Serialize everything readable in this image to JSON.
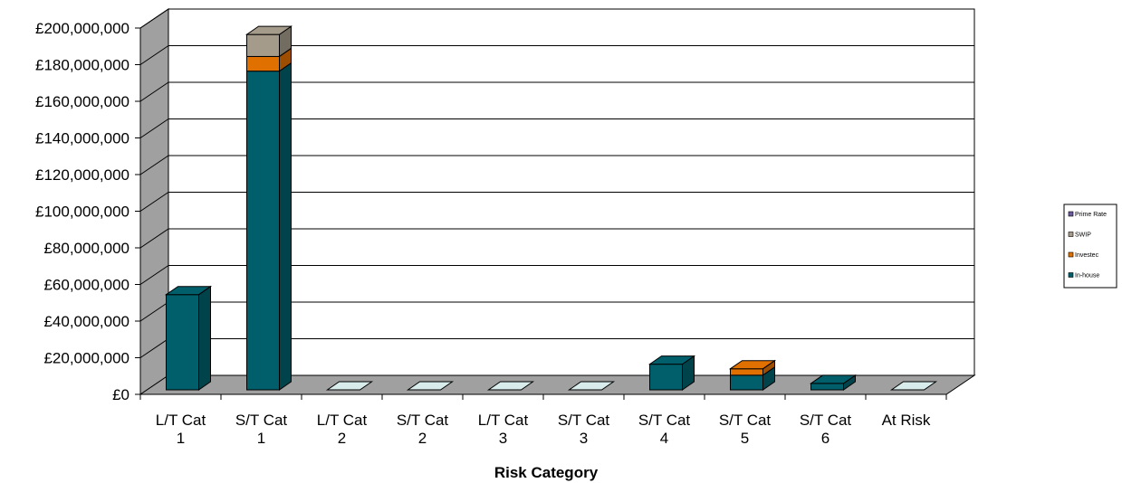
{
  "chart_data": {
    "type": "bar",
    "stacked": true,
    "three_d": true,
    "title": "",
    "xlabel": "Risk Category",
    "ylabel": "",
    "ylim": [
      0,
      200000000
    ],
    "ytick_step": 20000000,
    "ytick_labels": [
      "£0",
      "£20,000,000",
      "£40,000,000",
      "£60,000,000",
      "£80,000,000",
      "£100,000,000",
      "£120,000,000",
      "£140,000,000",
      "£160,000,000",
      "£180,000,000",
      "£200,000,000"
    ],
    "grid": true,
    "legend_position": "right",
    "categories": [
      [
        "L/T Cat",
        "1"
      ],
      [
        "S/T Cat",
        "1"
      ],
      [
        "L/T Cat",
        "2"
      ],
      [
        "S/T Cat",
        "2"
      ],
      [
        "L/T Cat",
        "3"
      ],
      [
        "S/T Cat",
        "3"
      ],
      [
        "S/T Cat",
        "4"
      ],
      [
        "S/T Cat",
        "5"
      ],
      [
        "S/T Cat",
        "6"
      ],
      [
        "At Risk"
      ]
    ],
    "series": [
      {
        "name": "In-house",
        "color": "#005F6B",
        "values": [
          52000000,
          174000000,
          0,
          0,
          0,
          0,
          14000000,
          8000000,
          3500000,
          0
        ]
      },
      {
        "name": "Investec",
        "color": "#E07000",
        "values": [
          0,
          8000000,
          0,
          0,
          0,
          0,
          0,
          3500000,
          0,
          0
        ]
      },
      {
        "name": "SWIP",
        "color": "#A59B8A",
        "values": [
          0,
          12000000,
          0,
          0,
          0,
          0,
          0,
          0,
          0,
          0
        ]
      },
      {
        "name": "Prime Rate",
        "color": "#6B5A9C",
        "values": [
          0,
          0,
          0,
          0,
          0,
          0,
          0,
          0,
          0,
          0
        ]
      }
    ],
    "legend_order": [
      "Prime Rate",
      "SWIP",
      "Investec",
      "In-house"
    ]
  }
}
